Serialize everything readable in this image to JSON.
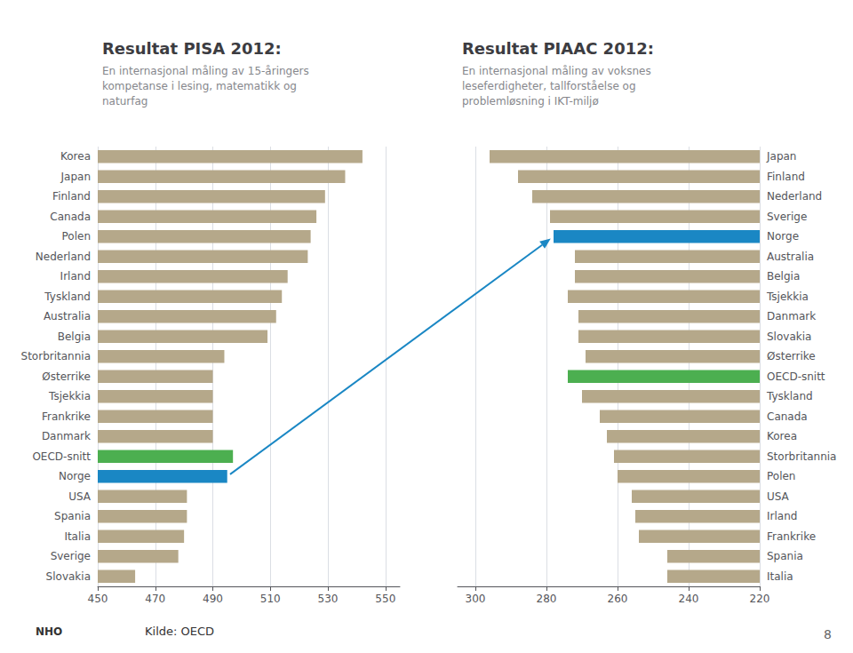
{
  "chart_data": [
    {
      "type": "bar",
      "orientation": "horizontal",
      "title": "Resultat PISA 2012:",
      "subtitle": "En internasjonal måling av 15-åringers\nkompetanse i lesing, matematikk og\nnaturfag",
      "categories": [
        "Korea",
        "Japan",
        "Finland",
        "Canada",
        "Polen",
        "Nederland",
        "Irland",
        "Tyskland",
        "Australia",
        "Belgia",
        "Storbritannia",
        "Østerrike",
        "Tsjekkia",
        "Frankrike",
        "Danmark",
        "OECD-snitt",
        "Norge",
        "USA",
        "Spania",
        "Italia",
        "Sverige",
        "Slovakia"
      ],
      "values": [
        542,
        536,
        529,
        526,
        524,
        523,
        516,
        514,
        512,
        509,
        494,
        490,
        490,
        490,
        490,
        497,
        495,
        481,
        481,
        480,
        478,
        463
      ],
      "colors": [
        "#b5a88a",
        "#b5a88a",
        "#b5a88a",
        "#b5a88a",
        "#b5a88a",
        "#b5a88a",
        "#b5a88a",
        "#b5a88a",
        "#b5a88a",
        "#b5a88a",
        "#b5a88a",
        "#b5a88a",
        "#b5a88a",
        "#b5a88a",
        "#b5a88a",
        "#4caf50",
        "#1a87c4",
        "#b5a88a",
        "#b5a88a",
        "#b5a88a",
        "#b5a88a",
        "#b5a88a"
      ],
      "xlim": [
        450,
        555
      ],
      "xticks": [
        450,
        470,
        490,
        510,
        530,
        550
      ],
      "grid": true
    },
    {
      "type": "bar",
      "orientation": "horizontal",
      "title": "Resultat PIAAC 2012:",
      "subtitle": "En internasjonal måling av voksnes\nleseferdigheter, tallforståelse og\nproblemløsning i IKT-miljø",
      "categories": [
        "Japan",
        "Finland",
        "Nederland",
        "Sverige",
        "Norge",
        "Australia",
        "Belgia",
        "Tsjekkia",
        "Danmark",
        "Slovakia",
        "Østerrike",
        "OECD-snitt",
        "Tyskland",
        "Canada",
        "Korea",
        "Storbritannia",
        "Polen",
        "USA",
        "Irland",
        "Frankrike",
        "Spania",
        "Italia"
      ],
      "values": [
        296,
        288,
        284,
        279,
        278,
        272,
        272,
        274,
        271,
        271,
        269,
        274,
        270,
        265,
        263,
        261,
        260,
        256,
        255,
        254,
        246,
        246
      ],
      "colors": [
        "#b5a88a",
        "#b5a88a",
        "#b5a88a",
        "#b5a88a",
        "#1a87c4",
        "#b5a88a",
        "#b5a88a",
        "#b5a88a",
        "#b5a88a",
        "#b5a88a",
        "#b5a88a",
        "#4caf50",
        "#b5a88a",
        "#b5a88a",
        "#b5a88a",
        "#b5a88a",
        "#b5a88a",
        "#b5a88a",
        "#b5a88a",
        "#b5a88a",
        "#b5a88a",
        "#b5a88a"
      ],
      "xlim": [
        305,
        220
      ],
      "xticks": [
        300,
        280,
        260,
        240,
        220
      ],
      "grid": true
    }
  ],
  "annotations": [
    {
      "type": "arrow",
      "from": "Norge",
      "to": "Norge",
      "color": "#1a87c4"
    },
    {
      "text": "Kilde: OECD"
    },
    {
      "text": "8"
    },
    {
      "text": "NHO"
    }
  ]
}
